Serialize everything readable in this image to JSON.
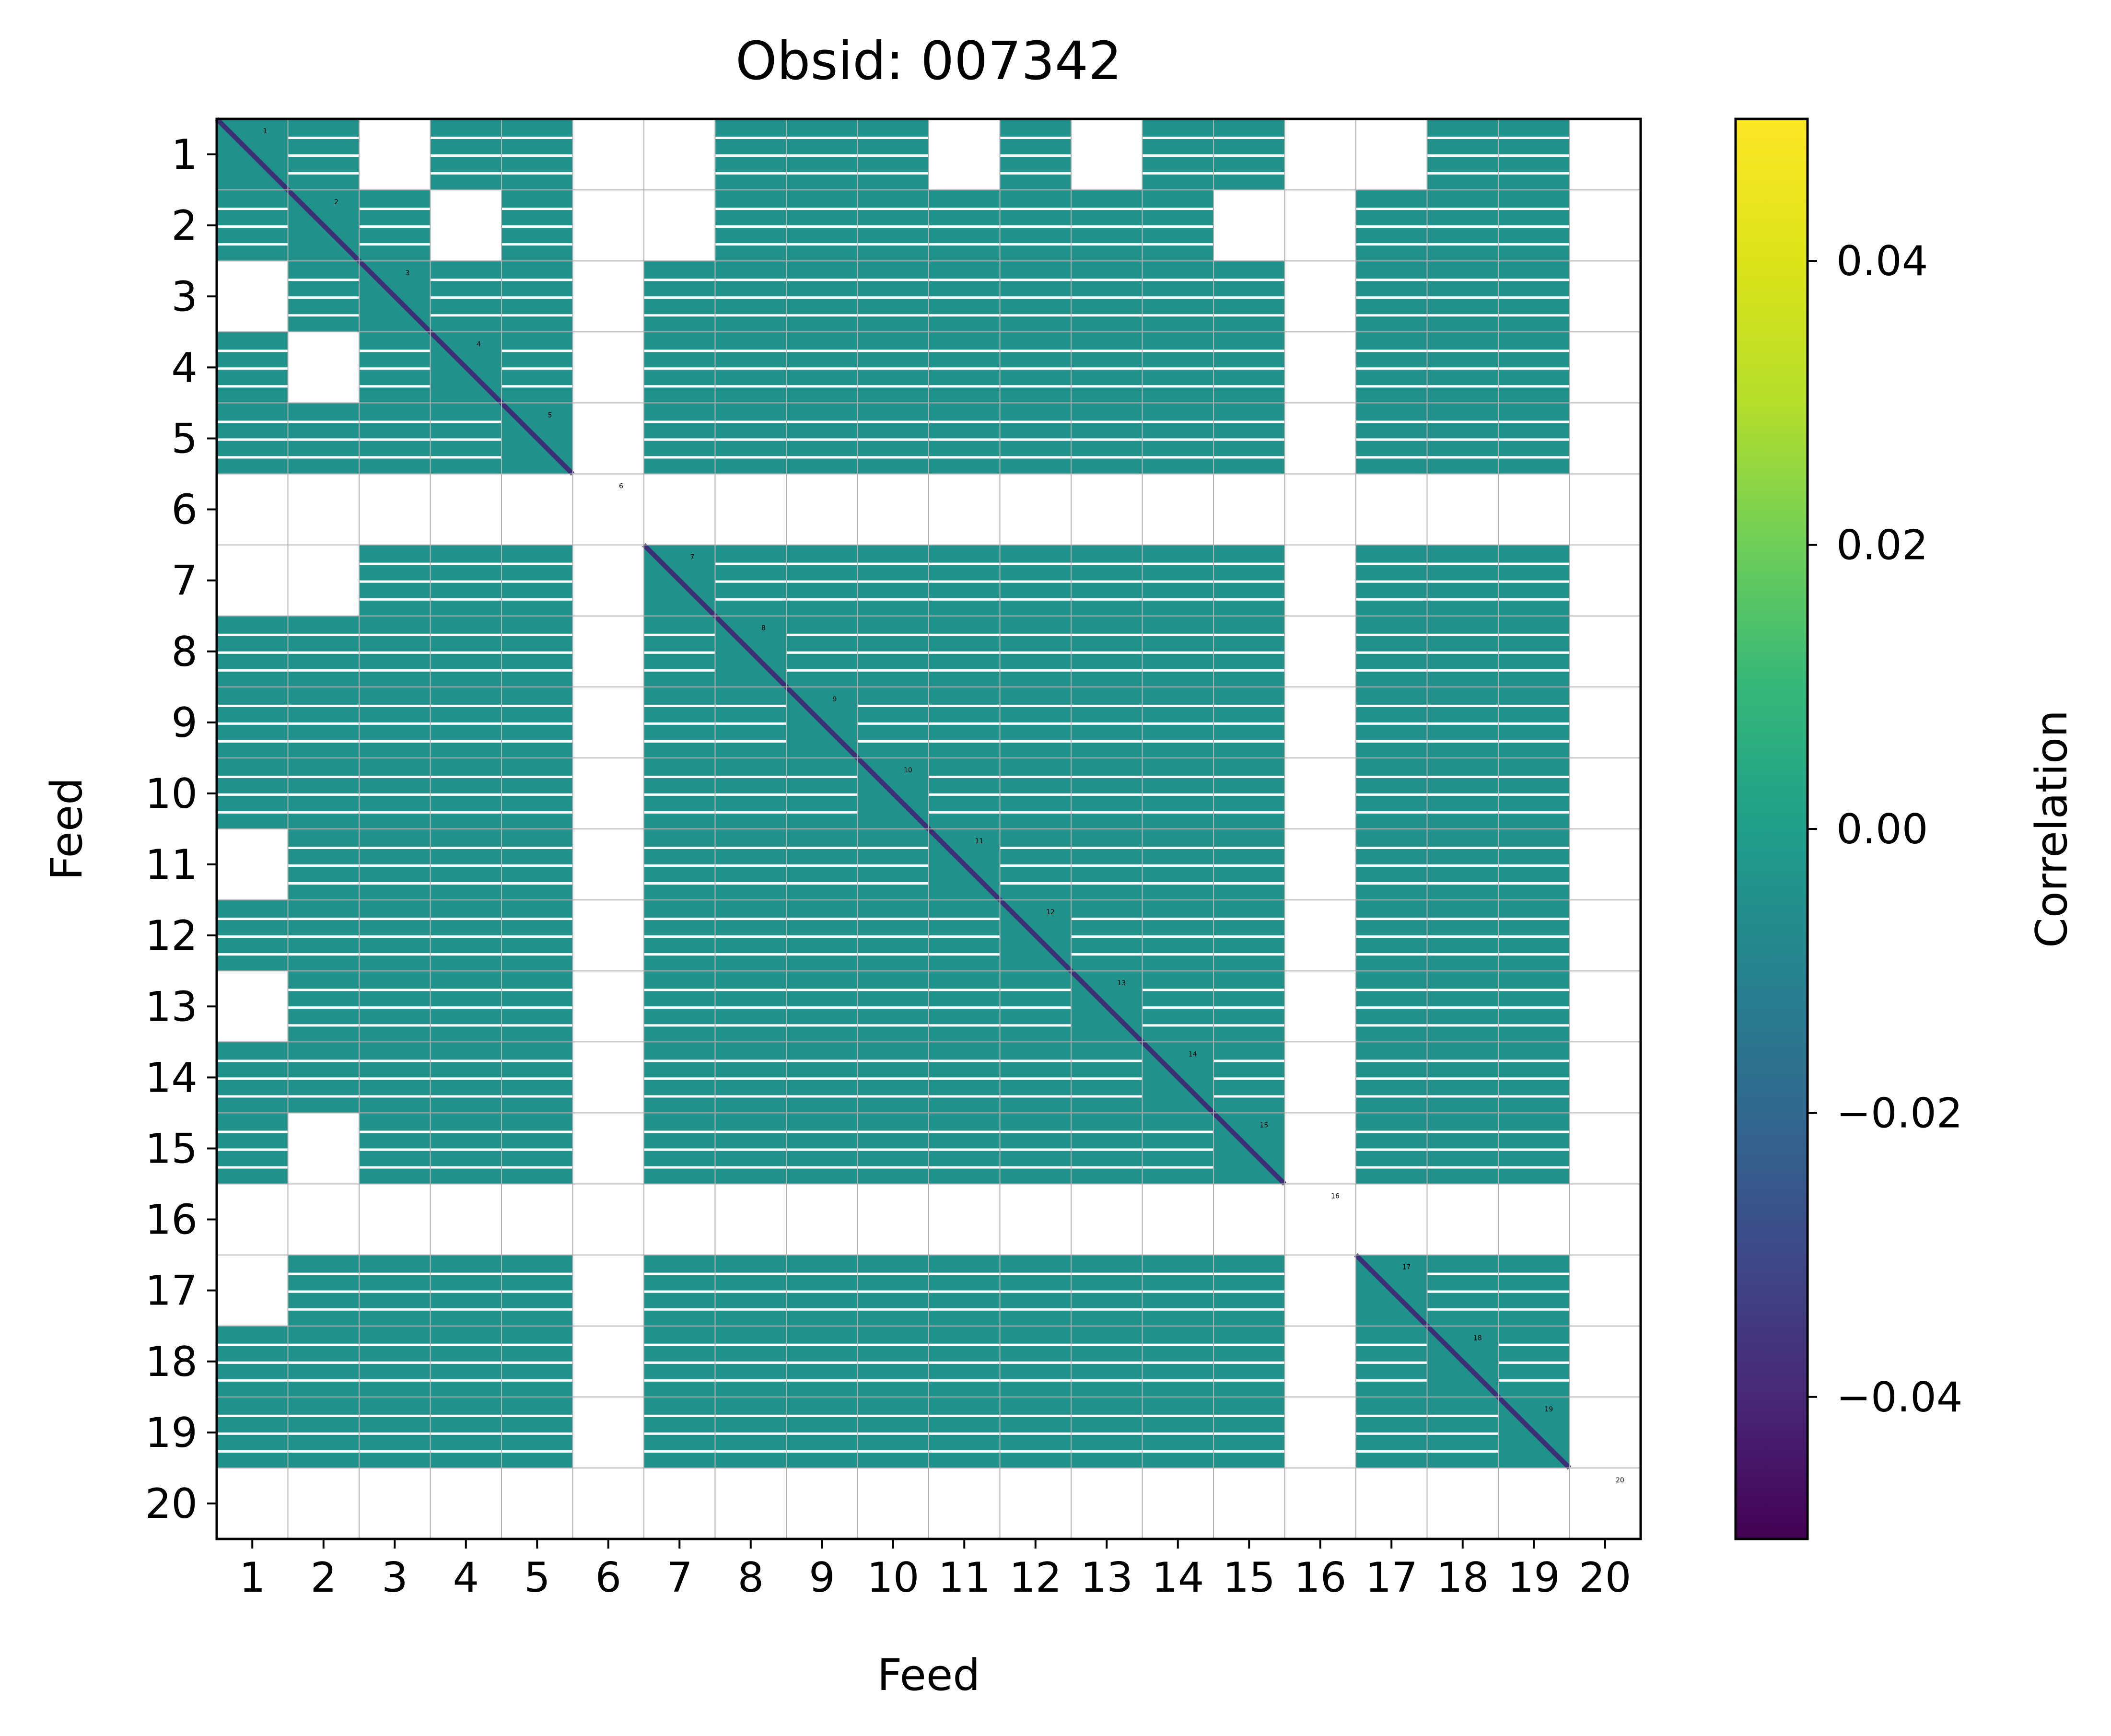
{
  "chart_data": {
    "type": "heatmap",
    "title": "Obsid: 007342",
    "xlabel": "Feed",
    "ylabel": "Feed",
    "x_tick_labels": [
      "1",
      "2",
      "3",
      "4",
      "5",
      "6",
      "7",
      "8",
      "9",
      "10",
      "11",
      "12",
      "13",
      "14",
      "15",
      "16",
      "17",
      "18",
      "19",
      "20"
    ],
    "y_tick_labels": [
      "1",
      "2",
      "3",
      "4",
      "5",
      "6",
      "7",
      "8",
      "9",
      "10",
      "11",
      "12",
      "13",
      "14",
      "15",
      "16",
      "17",
      "18",
      "19",
      "20"
    ],
    "n_feeds": 20,
    "grid": true,
    "feeds_flagged_empty": [
      6,
      16,
      20
    ],
    "typical_offdiagonal_value": 0.0,
    "diagonal_value": -0.05,
    "diagonal_feed_labels": [
      "1",
      "2",
      "3",
      "4",
      "5",
      "6",
      "7",
      "8",
      "9",
      "10",
      "11",
      "12",
      "13",
      "14",
      "15",
      "16",
      "17",
      "18",
      "19",
      "20"
    ],
    "masked_blocks": [
      [
        1,
        3
      ],
      [
        1,
        6
      ],
      [
        1,
        7
      ],
      [
        1,
        11
      ],
      [
        1,
        13
      ],
      [
        1,
        16
      ],
      [
        1,
        17
      ],
      [
        1,
        20
      ],
      [
        2,
        6
      ],
      [
        2,
        16
      ],
      [
        2,
        20
      ],
      [
        3,
        6
      ],
      [
        3,
        16
      ],
      [
        3,
        20
      ],
      [
        4,
        2
      ],
      [
        4,
        6
      ],
      [
        4,
        16
      ],
      [
        4,
        20
      ],
      [
        5,
        6
      ],
      [
        5,
        16
      ],
      [
        5,
        20
      ],
      [
        7,
        2
      ],
      [
        7,
        6
      ],
      [
        7,
        16
      ],
      [
        7,
        20
      ],
      [
        8,
        6
      ],
      [
        8,
        16
      ],
      [
        8,
        20
      ],
      [
        9,
        6
      ],
      [
        9,
        16
      ],
      [
        9,
        20
      ],
      [
        10,
        6
      ],
      [
        10,
        16
      ],
      [
        10,
        20
      ],
      [
        11,
        6
      ],
      [
        11,
        16
      ],
      [
        11,
        20
      ],
      [
        12,
        6
      ],
      [
        12,
        16
      ],
      [
        12,
        20
      ],
      [
        13,
        6
      ],
      [
        13,
        16
      ],
      [
        13,
        20
      ],
      [
        14,
        6
      ],
      [
        14,
        16
      ],
      [
        14,
        20
      ],
      [
        15,
        2
      ],
      [
        15,
        6
      ],
      [
        15,
        16
      ],
      [
        15,
        20
      ],
      [
        17,
        6
      ],
      [
        17,
        16
      ],
      [
        17,
        20
      ],
      [
        18,
        6
      ],
      [
        18,
        16
      ],
      [
        18,
        20
      ],
      [
        19,
        6
      ],
      [
        19,
        16
      ],
      [
        19,
        20
      ]
    ],
    "colorbar": {
      "label": "Correlation",
      "range": [
        -0.05,
        0.05
      ],
      "colormap": "viridis",
      "ticks": [
        0.04,
        0.02,
        0.0,
        -0.02,
        -0.04
      ],
      "tick_labels": [
        "0.04",
        "0.02",
        "0.00",
        "−0.02",
        "−0.04"
      ]
    }
  },
  "colors": {
    "cell": "#21918c",
    "diagonal": "#3b2f75",
    "grid": "#b0b0b0",
    "axes": "#000000"
  }
}
